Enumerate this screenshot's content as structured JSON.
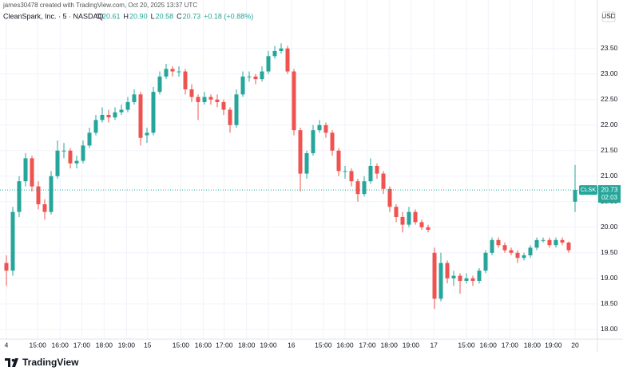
{
  "header": {
    "credit": "james30478 created with TradingView.com, Oct 20, 2025 13:37 UTC",
    "symbol": "CleanSpark, Inc. · 5 · NASDAQ",
    "ohlc": [
      {
        "label": "O",
        "value": "20.61"
      },
      {
        "label": "H",
        "value": "20.90"
      },
      {
        "label": "L",
        "value": "20.58"
      },
      {
        "label": "C",
        "value": "20.73"
      }
    ],
    "change": "+0.18 (+0.88%)"
  },
  "footer": {
    "brand": "TradingView"
  },
  "chart_data": {
    "type": "candlestick",
    "currency": "USD",
    "up_color": "#26a69a",
    "down_color": "#ef5350",
    "grid": true,
    "last_price": {
      "symbol": "CLSK",
      "value": 20.73,
      "label": "20.73",
      "countdown": "02:03"
    },
    "xlim": [
      -1,
      92.5
    ],
    "xticks": [
      {
        "value": 0,
        "label": "4"
      },
      {
        "value": 4.9,
        "label": "15:00"
      },
      {
        "value": 8.4,
        "label": "16:00"
      },
      {
        "value": 11.8,
        "label": "17:00"
      },
      {
        "value": 15.3,
        "label": "18:00"
      },
      {
        "value": 18.8,
        "label": "19:00"
      },
      {
        "value": 22.1,
        "label": "15"
      },
      {
        "value": 27.3,
        "label": "15:00"
      },
      {
        "value": 30.8,
        "label": "16:00"
      },
      {
        "value": 34.1,
        "label": "17:00"
      },
      {
        "value": 37.6,
        "label": "18:00"
      },
      {
        "value": 41,
        "label": "19:00"
      },
      {
        "value": 44.6,
        "label": "16"
      },
      {
        "value": 49.6,
        "label": "15:00"
      },
      {
        "value": 53,
        "label": "16:00"
      },
      {
        "value": 56.5,
        "label": "17:00"
      },
      {
        "value": 59.9,
        "label": "18:00"
      },
      {
        "value": 63.3,
        "label": "19:00"
      },
      {
        "value": 66.9,
        "label": "17"
      },
      {
        "value": 72,
        "label": "15:00"
      },
      {
        "value": 75.4,
        "label": "16:00"
      },
      {
        "value": 78.8,
        "label": "17:00"
      },
      {
        "value": 82.3,
        "label": "18:00"
      },
      {
        "value": 85.6,
        "label": "19:00"
      },
      {
        "value": 89,
        "label": "20"
      }
    ],
    "ylim": [
      17.81,
      24.23
    ],
    "yticks": [
      {
        "value": 18,
        "label": "18.00"
      },
      {
        "value": 18.5,
        "label": "18.50"
      },
      {
        "value": 19,
        "label": "19.00"
      },
      {
        "value": 19.5,
        "label": "19.50"
      },
      {
        "value": 20,
        "label": "20.00"
      },
      {
        "value": 20.5,
        "label": "20.50"
      },
      {
        "value": 21,
        "label": "21.00"
      },
      {
        "value": 21.5,
        "label": "21.50"
      },
      {
        "value": 22,
        "label": "22.00"
      },
      {
        "value": 22.5,
        "label": "22.50"
      },
      {
        "value": 23,
        "label": "23.00"
      },
      {
        "value": 23.5,
        "label": "23.50"
      }
    ],
    "x": [
      0,
      1,
      2,
      3,
      4,
      5,
      6,
      7,
      8,
      9,
      10,
      11,
      12,
      13,
      14,
      15,
      16,
      17,
      18,
      19,
      20,
      21,
      22,
      23,
      24,
      25,
      26,
      27,
      28,
      29,
      30,
      31,
      32,
      33,
      34,
      35,
      36,
      37,
      38,
      39,
      40,
      41,
      42,
      43,
      44,
      45,
      46,
      47,
      48,
      49,
      50,
      51,
      52,
      53,
      54,
      55,
      56,
      57,
      58,
      59,
      60,
      61,
      62,
      63,
      64,
      65,
      66,
      67,
      68,
      69,
      70,
      71,
      72,
      73,
      74,
      75,
      76,
      77,
      78,
      79,
      80,
      81,
      82,
      83,
      84,
      85,
      86,
      87,
      88,
      89
    ],
    "open": [
      19.3,
      19.15,
      20.3,
      20.9,
      21.35,
      20.8,
      20.45,
      20.3,
      21.0,
      21.5,
      21.5,
      21.25,
      21.3,
      21.6,
      21.85,
      22.1,
      22.2,
      22.15,
      22.25,
      22.3,
      22.45,
      22.6,
      21.8,
      21.85,
      22.65,
      22.95,
      23.1,
      23.05,
      23.05,
      22.7,
      22.55,
      22.45,
      22.55,
      22.5,
      22.45,
      22.3,
      22.0,
      22.6,
      22.95,
      22.95,
      22.9,
      23.05,
      23.35,
      23.45,
      23.5,
      23.05,
      21.9,
      21.05,
      21.45,
      21.9,
      22.0,
      21.85,
      21.5,
      21.1,
      21.1,
      20.9,
      20.65,
      20.9,
      21.2,
      21.05,
      20.75,
      20.4,
      20.2,
      20.05,
      20.3,
      20.1,
      20.0,
      19.5,
      18.6,
      19.3,
      19.0,
      19.05,
      18.95,
      19.0,
      18.95,
      19.15,
      19.5,
      19.75,
      19.65,
      19.55,
      19.5,
      19.4,
      19.45,
      19.6,
      19.75,
      19.75,
      19.65,
      19.75,
      19.7,
      20.5
    ],
    "high": [
      19.45,
      20.4,
      21.0,
      21.45,
      21.4,
      20.9,
      20.55,
      21.1,
      21.7,
      21.65,
      21.55,
      21.4,
      21.7,
      21.95,
      22.2,
      22.35,
      22.3,
      22.35,
      22.4,
      22.55,
      22.7,
      22.65,
      21.95,
      22.75,
      23.05,
      23.2,
      23.15,
      23.15,
      23.1,
      22.8,
      22.6,
      22.65,
      22.6,
      22.6,
      22.5,
      22.35,
      22.7,
      23.05,
      23.05,
      23.0,
      23.15,
      23.45,
      23.55,
      23.6,
      23.55,
      23.1,
      21.95,
      21.5,
      22.0,
      22.1,
      22.05,
      21.9,
      21.55,
      21.2,
      21.15,
      20.95,
      21.0,
      21.35,
      21.25,
      21.1,
      20.8,
      20.45,
      20.3,
      20.4,
      20.35,
      20.15,
      20.05,
      19.6,
      19.5,
      19.35,
      19.15,
      19.1,
      19.1,
      19.05,
      19.2,
      19.55,
      19.8,
      19.8,
      19.7,
      19.6,
      19.55,
      19.5,
      19.65,
      19.8,
      19.8,
      19.8,
      19.8,
      19.8,
      19.72,
      21.22
    ],
    "low": [
      18.85,
      19.05,
      20.2,
      20.8,
      20.7,
      20.35,
      20.15,
      20.25,
      20.95,
      21.35,
      21.15,
      21.15,
      21.25,
      21.55,
      21.8,
      22.05,
      22.05,
      22.1,
      22.2,
      22.25,
      22.4,
      21.6,
      21.65,
      21.8,
      22.6,
      22.9,
      22.95,
      22.95,
      22.6,
      22.45,
      22.1,
      22.4,
      22.4,
      22.35,
      22.2,
      21.85,
      21.95,
      22.55,
      22.85,
      22.8,
      22.85,
      23.0,
      23.3,
      23.4,
      23.0,
      21.8,
      20.7,
      20.95,
      21.4,
      21.85,
      21.75,
      21.4,
      21.0,
      20.95,
      20.8,
      20.5,
      20.6,
      20.85,
      20.95,
      20.65,
      20.3,
      20.1,
      19.9,
      20.0,
      20.05,
      19.95,
      19.9,
      18.4,
      18.55,
      18.9,
      18.85,
      18.7,
      18.9,
      18.85,
      18.9,
      19.1,
      19.45,
      19.6,
      19.5,
      19.45,
      19.3,
      19.35,
      19.4,
      19.55,
      19.7,
      19.6,
      19.6,
      19.65,
      19.5,
      20.3
    ],
    "close": [
      19.15,
      20.3,
      20.9,
      21.35,
      20.8,
      20.45,
      20.3,
      21.0,
      21.5,
      21.5,
      21.25,
      21.3,
      21.6,
      21.85,
      22.1,
      22.2,
      22.15,
      22.25,
      22.3,
      22.45,
      22.6,
      21.75,
      21.85,
      22.65,
      22.95,
      23.1,
      23.05,
      23.05,
      22.7,
      22.55,
      22.45,
      22.55,
      22.5,
      22.45,
      22.3,
      22.0,
      22.6,
      22.95,
      22.95,
      22.9,
      23.05,
      23.35,
      23.45,
      23.5,
      23.05,
      21.9,
      21.05,
      21.45,
      21.9,
      22.0,
      21.85,
      21.5,
      21.1,
      21.1,
      20.9,
      20.65,
      20.9,
      21.2,
      21.05,
      20.75,
      20.4,
      20.2,
      20.05,
      20.3,
      20.1,
      20.0,
      19.95,
      18.6,
      19.3,
      19.0,
      19.05,
      18.95,
      19.0,
      18.95,
      19.15,
      19.5,
      19.75,
      19.65,
      19.55,
      19.5,
      19.4,
      19.45,
      19.6,
      19.75,
      19.75,
      19.65,
      19.75,
      19.7,
      19.55,
      20.73
    ]
  }
}
